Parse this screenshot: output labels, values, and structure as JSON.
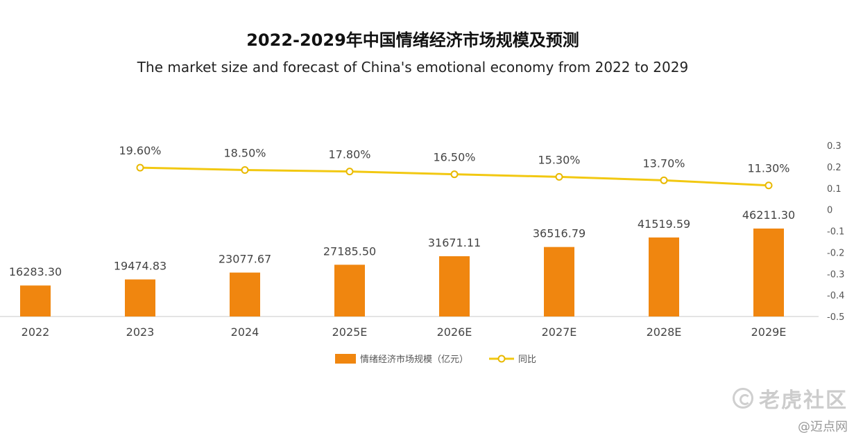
{
  "watermark": {
    "brand": "老虎社区",
    "credit": "@迈点网"
  },
  "chart_data": {
    "type": "bar",
    "title": "2022-2029年中国情绪经济市场规模及预测",
    "subtitle": "The market size and forecast of China's emotional economy from 2022 to 2029",
    "categories": [
      "2022",
      "2023",
      "2024",
      "2025E",
      "2026E",
      "2027E",
      "2028E",
      "2029E"
    ],
    "series": [
      {
        "name": "情绪经济市场规模（亿元）",
        "type": "bar",
        "axis": "left",
        "values": [
          16283.3,
          19474.83,
          23077.67,
          27185.5,
          31671.11,
          36516.79,
          41519.59,
          46211.3
        ],
        "labels": [
          "16283.30",
          "19474.83",
          "23077.67",
          "27185.50",
          "31671.11",
          "36516.79",
          "41519.59",
          "46211.30"
        ],
        "color": "#f0860f"
      },
      {
        "name": "同比",
        "type": "line",
        "axis": "right",
        "values": [
          null,
          0.196,
          0.185,
          0.178,
          0.165,
          0.153,
          0.137,
          0.113
        ],
        "labels": [
          "",
          "19.60%",
          "18.50%",
          "17.80%",
          "16.50%",
          "15.30%",
          "13.70%",
          "11.30%"
        ],
        "color": "#f2c811"
      }
    ],
    "y2": {
      "ylim": [
        -0.5,
        0.3
      ],
      "ticks": [
        "0.3",
        "0.2",
        "0.1",
        "0",
        "-0.1",
        "-0.2",
        "-0.3",
        "-0.4",
        "-0.5"
      ]
    },
    "legend": "bottom-center",
    "grid": false
  }
}
